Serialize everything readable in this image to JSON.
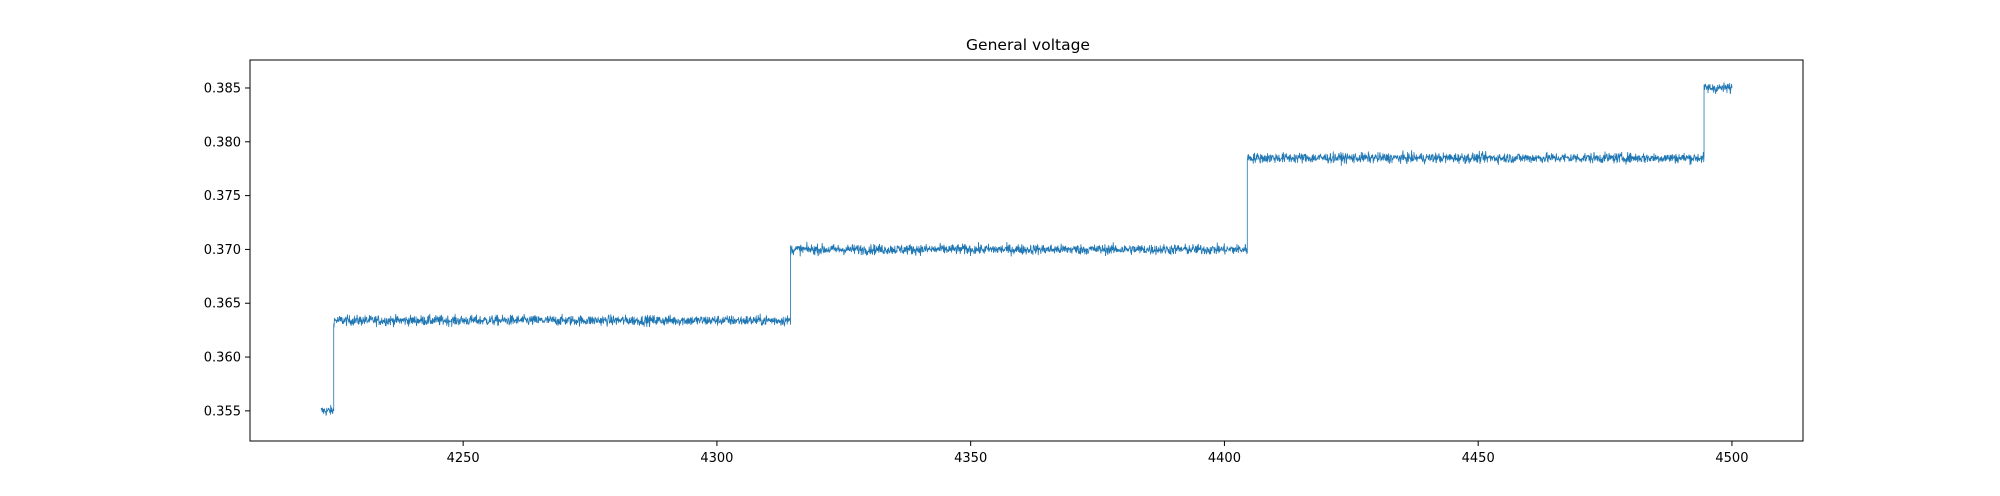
{
  "chart_data": {
    "type": "line",
    "title": "General voltage",
    "xlabel": "",
    "ylabel": "",
    "xlim": [
      4208,
      4514
    ],
    "ylim": [
      0.3522,
      0.3876
    ],
    "x_ticks": [
      4250,
      4300,
      4350,
      4400,
      4450,
      4500
    ],
    "x_tick_labels": [
      "4250",
      "4300",
      "4350",
      "4400",
      "4450",
      "4500"
    ],
    "y_ticks": [
      0.355,
      0.36,
      0.365,
      0.37,
      0.375,
      0.38,
      0.385
    ],
    "y_tick_labels": [
      "0.355",
      "0.360",
      "0.365",
      "0.370",
      "0.375",
      "0.380",
      "0.385"
    ],
    "grid": false,
    "series": [
      {
        "color": "#1f77b4",
        "noise_band": 0.0006,
        "levels": [
          {
            "x_start": 4222,
            "x_end": 4224.5,
            "y": 0.355
          },
          {
            "x_start": 4224.5,
            "x_end": 4314.5,
            "y": 0.3634
          },
          {
            "x_start": 4314.5,
            "x_end": 4404.5,
            "y": 0.37
          },
          {
            "x_start": 4404.5,
            "x_end": 4494.5,
            "y": 0.3785
          },
          {
            "x_start": 4494.5,
            "x_end": 4500,
            "y": 0.385
          }
        ]
      }
    ]
  }
}
